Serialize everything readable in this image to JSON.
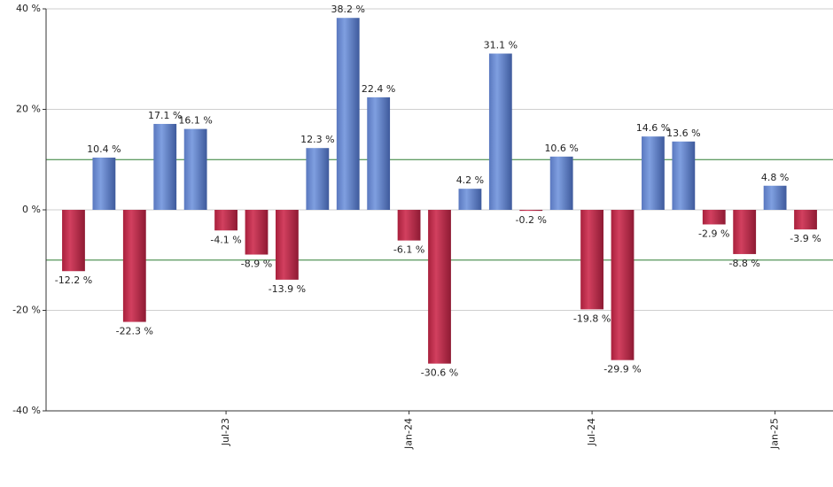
{
  "chart_data": {
    "type": "bar",
    "categories": [
      null,
      null,
      null,
      null,
      null,
      "Jul-23",
      null,
      null,
      null,
      null,
      null,
      "Jan-24",
      null,
      null,
      null,
      null,
      null,
      "Jul-24",
      null,
      null,
      null,
      null,
      null,
      "Jan-25",
      null
    ],
    "values": [
      -12.2,
      10.4,
      -22.3,
      17.1,
      16.1,
      -4.1,
      -8.9,
      -13.9,
      12.3,
      38.2,
      22.4,
      -6.1,
      -30.6,
      4.2,
      31.1,
      -0.2,
      10.6,
      -19.8,
      -29.9,
      14.6,
      13.6,
      -2.9,
      -8.8,
      4.8,
      -3.9
    ],
    "value_labels": [
      "-12.2 %",
      "10.4 %",
      "-22.3 %",
      "17.1 %",
      "16.1 %",
      "-4.1 %",
      "-8.9 %",
      "-13.9 %",
      "12.3 %",
      "38.2 %",
      "22.4 %",
      "-6.1 %",
      "-30.6 %",
      "4.2 %",
      "31.1 %",
      "-0.2 %",
      "10.6 %",
      "-19.8 %",
      "-29.9 %",
      "14.6 %",
      "13.6 %",
      "-2.9 %",
      "-8.8 %",
      "4.8 %",
      "-3.9 %"
    ],
    "positive_color": "#7f9fe0",
    "negative_color": "#d2405f",
    "ylim": [
      -40,
      40
    ],
    "yticks": [
      {
        "value": -40,
        "label": "-40 %"
      },
      {
        "value": -20,
        "label": "-20 %"
      },
      {
        "value": 0,
        "label": "0 %"
      },
      {
        "value": 20,
        "label": "20 %"
      },
      {
        "value": 40,
        "label": "40 %"
      }
    ],
    "reference_lines": [
      -10,
      10
    ],
    "reference_color": "#2e7d32",
    "grid": true
  }
}
